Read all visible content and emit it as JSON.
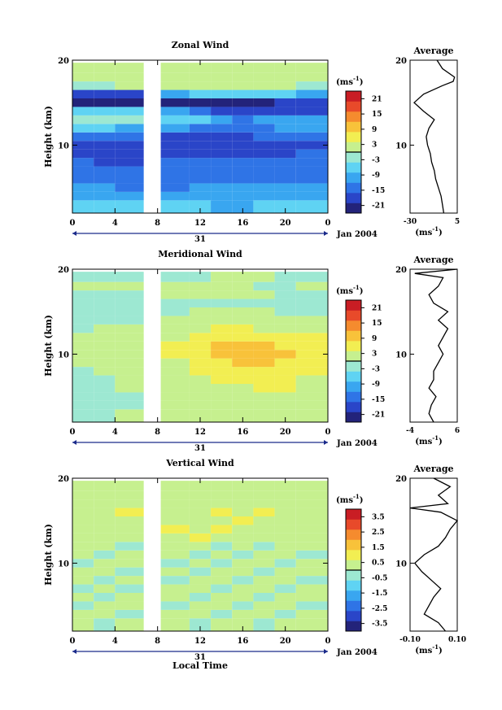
{
  "panels": [
    {
      "title": "Zonal Wind",
      "ylabel": "Height (km)",
      "ytick_labels": [
        "20",
        "10"
      ],
      "xtick_labels": [
        "0",
        "4",
        "8",
        "12",
        "16",
        "20",
        "0"
      ],
      "date_label": "31",
      "month_label": "Jan 2004",
      "cb_unit": "(ms",
      "cb_unit_exp": "-1",
      "cb_unit_close": ")",
      "cb_ticks": [
        "21",
        "15",
        "9",
        "3",
        "-3",
        "-9",
        "-15",
        "-21"
      ],
      "avg_title": "Average",
      "avg_ytick_labels": [
        "20",
        "10"
      ],
      "avg_xtick_labels": [
        "-30",
        "5"
      ],
      "avg_unit": "(ms",
      "avg_unit_exp": "-1",
      "avg_unit_close": ")"
    },
    {
      "title": "Meridional Wind",
      "ylabel": "Height (km)",
      "ytick_labels": [
        "20",
        "10"
      ],
      "xtick_labels": [
        "0",
        "4",
        "8",
        "12",
        "16",
        "20",
        "0"
      ],
      "date_label": "31",
      "month_label": "Jan 2004",
      "cb_unit": "(ms",
      "cb_unit_exp": "-1",
      "cb_unit_close": ")",
      "cb_ticks": [
        "21",
        "15",
        "9",
        "3",
        "-3",
        "-9",
        "-15",
        "-21"
      ],
      "avg_title": "Average",
      "avg_ytick_labels": [
        "20",
        "10"
      ],
      "avg_xtick_labels": [
        "-4",
        "6"
      ],
      "avg_unit": "(ms",
      "avg_unit_exp": "-1",
      "avg_unit_close": ")"
    },
    {
      "title": "Vertical Wind",
      "ylabel": "Height (km)",
      "ytick_labels": [
        "20",
        "10"
      ],
      "xtick_labels": [
        "0",
        "4",
        "8",
        "12",
        "16",
        "20",
        "0"
      ],
      "date_label": "31",
      "month_label": "Jan 2004",
      "cb_unit": "(ms",
      "cb_unit_exp": "-1",
      "cb_unit_close": ")",
      "cb_ticks": [
        "3.5",
        "2.5",
        "1.5",
        "0.5",
        "-0.5",
        "-1.5",
        "-2.5",
        "-3.5"
      ],
      "avg_title": "Average",
      "avg_ytick_labels": [
        "20",
        "10"
      ],
      "avg_xtick_labels": [
        "-0.10",
        "0.10"
      ],
      "avg_unit": "(ms",
      "avg_unit_exp": "-1",
      "avg_unit_close": ")"
    }
  ],
  "xlabel": "Local Time",
  "colorscale": [
    "#23237a",
    "#2a45c8",
    "#2f74e6",
    "#39a6f0",
    "#5fd3f3",
    "#9de8d2",
    "#c6f08f",
    "#f2ee52",
    "#f8c23a",
    "#f58b2e",
    "#e84a2a",
    "#c91d24"
  ],
  "chart_data": [
    {
      "type": "heatmap",
      "title": "Zonal Wind",
      "ylabel": "Height (km)",
      "xlabel": "Local Time",
      "x_ticks_hours": [
        0,
        4,
        8,
        12,
        16,
        20,
        24
      ],
      "xlim_hours": [
        0,
        24
      ],
      "ylim_km": [
        2,
        20
      ],
      "gap_hours": [
        6.7,
        8.3
      ],
      "colorbar_unit": "ms^-1",
      "colorbar_range": [
        -24,
        24
      ],
      "colorbar_ticks": [
        21,
        15,
        9,
        3,
        -3,
        -9,
        -15,
        -21
      ],
      "height_km": [
        3,
        4,
        5,
        6,
        7,
        8,
        9,
        10,
        11,
        12,
        13,
        14,
        15,
        16,
        17,
        18,
        19
      ],
      "time_hours": [
        1,
        3,
        5,
        10,
        12,
        14,
        16,
        18,
        20,
        22
      ],
      "values": [
        [
          -6,
          -7,
          -7,
          -8,
          -8,
          -9,
          -9,
          -8,
          -8,
          -7
        ],
        [
          -10,
          -10,
          -11,
          -11,
          -10,
          -10,
          -10,
          -11,
          -11,
          -10
        ],
        [
          -12,
          -12,
          -13,
          -13,
          -12,
          -12,
          -12,
          -12,
          -12,
          -11
        ],
        [
          -13,
          -13,
          -14,
          -14,
          -13,
          -14,
          -14,
          -13,
          -13,
          -13
        ],
        [
          -14,
          -15,
          -15,
          -15,
          -15,
          -15,
          -15,
          -14,
          -14,
          -14
        ],
        [
          -16,
          -17,
          -17,
          -16,
          -16,
          -16,
          -16,
          -16,
          -15,
          -15
        ],
        [
          -17,
          -18,
          -18,
          -18,
          -18,
          -18,
          -17,
          -17,
          -17,
          -16
        ],
        [
          -18,
          -19,
          -19,
          -19,
          -19,
          -19,
          -18,
          -18,
          -17,
          -17
        ],
        [
          -15,
          -16,
          -16,
          -17,
          -17,
          -17,
          -17,
          -16,
          -16,
          -15
        ],
        [
          -7,
          -8,
          -9,
          -12,
          -13,
          -14,
          -14,
          -13,
          -12,
          -11
        ],
        [
          -3,
          -2,
          -2,
          -5,
          -8,
          -12,
          -14,
          -12,
          -10,
          -9
        ],
        [
          -6,
          -5,
          -6,
          -10,
          -14,
          -17,
          -19,
          -20,
          -19,
          -18
        ],
        [
          -22,
          -22,
          -22,
          -23,
          -23,
          -23,
          -23,
          -22,
          -20,
          -19
        ],
        [
          -18,
          -17,
          -17,
          -12,
          -8,
          -6,
          -5,
          -6,
          -8,
          -10
        ],
        [
          -2,
          -1,
          0,
          1,
          2,
          2,
          2,
          1,
          0,
          -1
        ],
        [
          1,
          2,
          2,
          3,
          3,
          3,
          2,
          2,
          1,
          0
        ],
        [
          0,
          0,
          1,
          1,
          2,
          1,
          1,
          0,
          0,
          0
        ]
      ],
      "average": {
        "title": "Average",
        "xlim": [
          -30,
          5
        ],
        "height_km": [
          2,
          3,
          4,
          5,
          6,
          7,
          8,
          9,
          10,
          11,
          12,
          13,
          14,
          15,
          16,
          17,
          17.5,
          18,
          19,
          20
        ],
        "values": [
          -5,
          -6,
          -7,
          -9,
          -11,
          -12,
          -14,
          -15,
          -17,
          -18,
          -16,
          -12,
          -20,
          -27,
          -20,
          -6,
          2,
          3,
          -6,
          -10
        ]
      }
    },
    {
      "type": "heatmap",
      "title": "Meridional Wind",
      "ylabel": "Height (km)",
      "xlabel": "Local Time",
      "x_ticks_hours": [
        0,
        4,
        8,
        12,
        16,
        20,
        24
      ],
      "xlim_hours": [
        0,
        24
      ],
      "ylim_km": [
        2,
        20
      ],
      "gap_hours": [
        6.7,
        8.3
      ],
      "colorbar_unit": "ms^-1",
      "colorbar_range": [
        -24,
        24
      ],
      "colorbar_ticks": [
        21,
        15,
        9,
        3,
        -3,
        -9,
        -15,
        -21
      ],
      "height_km": [
        3,
        4,
        5,
        6,
        7,
        8,
        9,
        10,
        11,
        12,
        13,
        14,
        15,
        16,
        17,
        18,
        19
      ],
      "time_hours": [
        1,
        3,
        5,
        10,
        12,
        14,
        16,
        18,
        20,
        22
      ],
      "values": [
        [
          -2,
          -1,
          0,
          0,
          1,
          1,
          1,
          2,
          2,
          1
        ],
        [
          -3,
          -2,
          -1,
          0,
          1,
          2,
          2,
          2,
          3,
          2
        ],
        [
          -4,
          -2,
          -1,
          1,
          2,
          2,
          3,
          3,
          3,
          2
        ],
        [
          -3,
          -2,
          0,
          1,
          2,
          3,
          3,
          4,
          4,
          3
        ],
        [
          -2,
          -1,
          0,
          2,
          3,
          4,
          5,
          5,
          4,
          3
        ],
        [
          -1,
          0,
          1,
          2,
          4,
          5,
          6,
          6,
          5,
          4
        ],
        [
          0,
          1,
          2,
          3,
          5,
          7,
          8,
          8,
          7,
          5
        ],
        [
          1,
          1,
          2,
          4,
          6,
          8,
          10,
          10,
          8,
          6
        ],
        [
          1,
          2,
          3,
          4,
          6,
          8,
          9,
          9,
          7,
          5
        ],
        [
          0,
          1,
          2,
          3,
          5,
          6,
          7,
          6,
          5,
          4
        ],
        [
          -1,
          0,
          1,
          2,
          3,
          4,
          4,
          3,
          3,
          2
        ],
        [
          -2,
          -2,
          -1,
          0,
          1,
          2,
          2,
          1,
          1,
          0
        ],
        [
          -3,
          -3,
          -2,
          -1,
          0,
          0,
          0,
          0,
          -1,
          -1
        ],
        [
          -4,
          -4,
          -3,
          -2,
          -1,
          -1,
          -2,
          -2,
          -2,
          -3
        ],
        [
          -2,
          -1,
          -1,
          0,
          1,
          1,
          0,
          0,
          -1,
          -1
        ],
        [
          1,
          2,
          2,
          1,
          1,
          0,
          0,
          -1,
          -1,
          0
        ],
        [
          -3,
          -2,
          -2,
          -1,
          -1,
          0,
          0,
          0,
          -1,
          -1
        ]
      ],
      "average": {
        "title": "Average",
        "xlim": [
          -4,
          6
        ],
        "height_km": [
          2,
          3,
          4,
          5,
          6,
          7,
          8,
          9,
          10,
          11,
          12,
          13,
          14,
          15,
          16,
          17,
          18,
          19,
          19.5,
          20
        ],
        "values": [
          1,
          0,
          0.5,
          1.5,
          0,
          1,
          1,
          2,
          3,
          2,
          3,
          4,
          2,
          4,
          1,
          0,
          2,
          3,
          -3,
          6
        ]
      }
    },
    {
      "type": "heatmap",
      "title": "Vertical Wind",
      "ylabel": "Height (km)",
      "xlabel": "Local Time",
      "x_ticks_hours": [
        0,
        4,
        8,
        12,
        16,
        20,
        24
      ],
      "xlim_hours": [
        0,
        24
      ],
      "ylim_km": [
        2,
        20
      ],
      "gap_hours": [
        6.7,
        8.3
      ],
      "colorbar_unit": "ms^-1",
      "colorbar_range": [
        -4,
        4
      ],
      "colorbar_ticks": [
        3.5,
        2.5,
        1.5,
        0.5,
        -0.5,
        -1.5,
        -2.5,
        -3.5
      ],
      "height_km": [
        3,
        4,
        5,
        6,
        7,
        8,
        9,
        10,
        11,
        12,
        13,
        14,
        15,
        16,
        17,
        18,
        19
      ],
      "time_hours": [
        1,
        3,
        5,
        10,
        12,
        14,
        16,
        18,
        20,
        22
      ],
      "values": [
        [
          0.3,
          -0.2,
          0.4,
          0.1,
          -0.3,
          0.5,
          0.2,
          -0.1,
          0.3,
          0.4
        ],
        [
          0.2,
          0.5,
          -0.1,
          0.3,
          0.4,
          -0.2,
          0.6,
          0.3,
          -0.1,
          0.2
        ],
        [
          -0.3,
          0.1,
          0.3,
          -0.4,
          0.2,
          0.4,
          -0.3,
          0.5,
          0.2,
          -0.2
        ],
        [
          0.1,
          -0.4,
          0.2,
          0.5,
          -0.1,
          0.3,
          0.2,
          -0.4,
          0.4,
          0.1
        ],
        [
          -0.2,
          0.3,
          -0.5,
          0.2,
          0.4,
          -0.3,
          0.1,
          0.3,
          -0.2,
          0.5
        ],
        [
          0.4,
          -0.1,
          0.2,
          -0.3,
          0.1,
          0.5,
          -0.4,
          0.2,
          0.3,
          -0.1
        ],
        [
          0.2,
          0.4,
          -0.2,
          0.1,
          -0.4,
          0.2,
          0.3,
          -0.3,
          0.1,
          0.4
        ],
        [
          -0.1,
          0.2,
          0.4,
          -0.2,
          0.3,
          -0.1,
          0.5,
          0.2,
          -0.3,
          0.2
        ],
        [
          0.3,
          -0.3,
          0.1,
          0.4,
          -0.2,
          0.2,
          -0.1,
          0.4,
          0.2,
          -0.2
        ],
        [
          0.1,
          0.2,
          -0.3,
          0.2,
          0.5,
          -0.3,
          0.2,
          -0.2,
          0.4,
          0.3
        ],
        [
          0.4,
          0.3,
          0.6,
          0.5,
          0.7,
          0.4,
          0.6,
          0.5,
          0.3,
          0.4
        ],
        [
          0.5,
          0.6,
          0.4,
          0.8,
          0.6,
          0.7,
          0.5,
          0.6,
          0.4,
          0.5
        ],
        [
          0.3,
          0.4,
          0.5,
          0.6,
          0.4,
          0.5,
          0.7,
          0.5,
          0.6,
          0.4
        ],
        [
          0.6,
          0.5,
          0.7,
          0.5,
          0.6,
          0.8,
          0.6,
          0.7,
          0.5,
          0.6
        ],
        [
          0.4,
          0.3,
          0.5,
          0.4,
          0.6,
          0.5,
          0.4,
          0.6,
          0.5,
          0.3
        ],
        [
          0.2,
          0.4,
          0.3,
          0.5,
          0.3,
          0.4,
          0.5,
          0.3,
          0.4,
          0.2
        ],
        [
          0.3,
          0.2,
          0.4,
          0.3,
          0.5,
          0.3,
          0.4,
          0.2,
          0.3,
          0.4
        ]
      ],
      "average": {
        "title": "Average",
        "xlim": [
          -0.1,
          0.1
        ],
        "height_km": [
          2,
          3,
          4,
          5,
          6,
          7,
          8,
          9,
          10,
          11,
          12,
          13,
          14,
          15,
          16,
          16.5,
          17,
          18,
          19,
          20
        ],
        "values": [
          0.05,
          0.02,
          -0.04,
          -0.02,
          0.0,
          0.03,
          -0.01,
          -0.05,
          -0.08,
          -0.04,
          0.02,
          0.05,
          0.07,
          0.1,
          0.03,
          -0.1,
          0.06,
          0.02,
          0.07,
          0.0
        ]
      }
    }
  ]
}
